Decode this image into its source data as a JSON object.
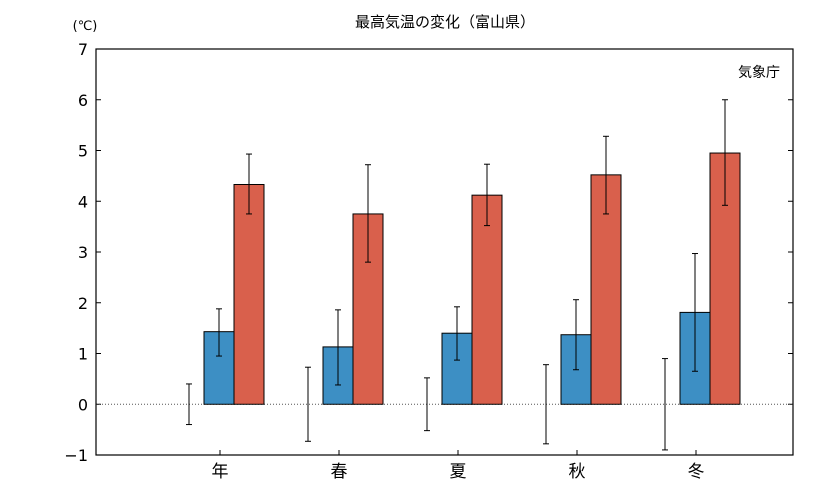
{
  "chart_data": {
    "type": "bar",
    "title": "最高気温の変化（富山県）",
    "yunit": "(℃)",
    "source": "気象庁",
    "categories": [
      "年",
      "春",
      "夏",
      "秋",
      "冬"
    ],
    "ylim": [
      -1,
      7
    ],
    "yticks": [
      -1,
      0,
      1,
      2,
      3,
      4,
      5,
      6,
      7
    ],
    "zero_line": "dotted",
    "colors": {
      "blue": "#3d8fc4",
      "red": "#d9604c"
    },
    "baseline_error": [
      [
        -0.4,
        0.4
      ],
      [
        -0.73,
        0.73
      ],
      [
        -0.52,
        0.52
      ],
      [
        -0.78,
        0.78
      ],
      [
        -0.9,
        0.9
      ]
    ],
    "series": [
      {
        "values": [
          1.43,
          1.13,
          1.4,
          1.37,
          1.81
        ],
        "errors": [
          [
            0.95,
            1.88
          ],
          [
            0.38,
            1.86
          ],
          [
            0.87,
            1.92
          ],
          [
            0.68,
            2.06
          ],
          [
            0.65,
            2.97
          ]
        ],
        "color": "#3d8fc4"
      },
      {
        "values": [
          4.33,
          3.75,
          4.12,
          4.52,
          4.95
        ],
        "errors": [
          [
            3.75,
            4.93
          ],
          [
            2.8,
            4.72
          ],
          [
            3.52,
            4.73
          ],
          [
            3.75,
            5.28
          ],
          [
            3.92,
            6.0
          ]
        ],
        "color": "#d9604c"
      }
    ]
  }
}
